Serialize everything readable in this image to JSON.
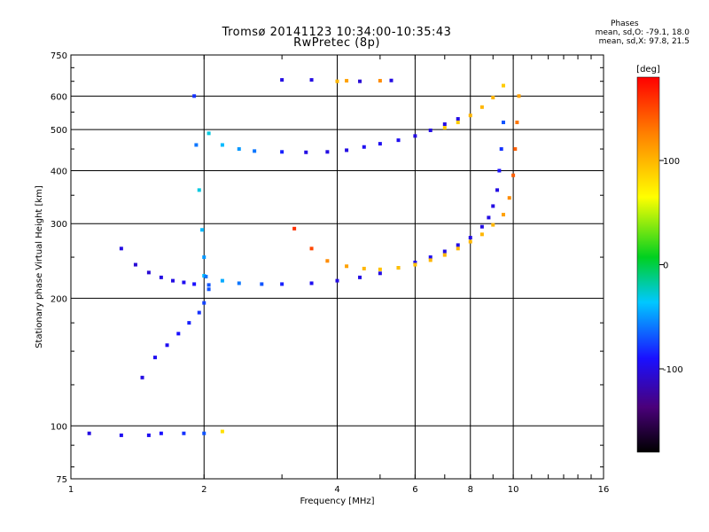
{
  "header": {
    "title": "Tromsø 20141123 10:34:00-10:35:43",
    "subtitle": "RwPretec (8p)"
  },
  "stats": {
    "heading": "Phases",
    "line_o": "mean, sd,O: -79.1, 18.0",
    "line_x": "mean, sd,X:  97.8, 21.5"
  },
  "colorbar": {
    "label": "[deg]",
    "ticks": [
      {
        "value": 100,
        "label": "100"
      },
      {
        "value": 0,
        "label": "0"
      },
      {
        "value": -100,
        "label": "-100"
      }
    ],
    "range": [
      -180,
      180
    ]
  },
  "chart_data": {
    "type": "scatter",
    "title": "Tromsø 20141123 10:34:00-10:35:43",
    "subtitle": "RwPretec (8p)",
    "xlabel": "Frequency [MHz]",
    "ylabel": "Stationary phase Virtual Height [km]",
    "x_scale": "log",
    "y_scale": "log",
    "xlim": [
      1,
      16
    ],
    "ylim": [
      75,
      750
    ],
    "x_ticks": [
      1,
      2,
      4,
      6,
      8,
      10,
      16
    ],
    "x_tick_labels": [
      "1",
      "2",
      "4",
      "6",
      "8",
      "10",
      "16"
    ],
    "y_ticks": [
      75,
      100,
      200,
      300,
      400,
      500,
      600,
      750
    ],
    "y_tick_labels": [
      "75",
      "100",
      "200",
      "300",
      "400",
      "500",
      "600",
      "750"
    ],
    "grid": true,
    "color_scale": "phase [deg], rainbow, -180 to 180",
    "series": [
      {
        "x": [
          2.05,
          2.2,
          2.4,
          2.6,
          3.0,
          3.4,
          3.8,
          4.2,
          4.6,
          5.0,
          5.5,
          6.0,
          6.5,
          7.0,
          7.5
        ],
        "y": [
          490,
          460,
          450,
          445,
          443,
          442,
          443,
          447,
          455,
          463,
          472,
          483,
          498,
          515,
          530
        ],
        "phase": [
          -30,
          -40,
          -50,
          -60,
          -85,
          -100,
          -100,
          -100,
          -95,
          -95,
          -95,
          -100,
          -100,
          -100,
          -100
        ]
      },
      {
        "x": [
          7.0,
          7.5,
          8.0,
          8.5,
          9.0,
          9.5
        ],
        "y": [
          505,
          520,
          540,
          565,
          595,
          635
        ],
        "phase": [
          90,
          90,
          100,
          100,
          100,
          90
        ]
      },
      {
        "x": [
          2.0,
          2.2,
          2.4,
          2.7,
          3.0,
          3.5,
          4.0,
          4.5,
          5.0,
          5.5,
          6.0,
          6.5,
          7.0,
          7.5,
          8.0,
          8.5,
          8.8,
          9.0,
          9.2,
          9.3,
          9.4,
          9.5
        ],
        "y": [
          226,
          220,
          217,
          216,
          216,
          217,
          220,
          224,
          229,
          236,
          243,
          250,
          258,
          267,
          278,
          295,
          310,
          330,
          360,
          400,
          450,
          520
        ],
        "phase": [
          -40,
          -45,
          -60,
          -70,
          -85,
          -95,
          -100,
          -100,
          -100,
          -100,
          -95,
          -95,
          -100,
          -100,
          -100,
          -100,
          -100,
          -100,
          -100,
          -90,
          -80,
          -70
        ]
      },
      {
        "x": [
          3.2,
          3.5,
          3.8,
          4.2,
          4.6,
          5.0,
          5.5,
          6.0,
          6.5,
          7.0,
          7.5,
          8.0,
          8.5,
          9.0,
          9.5,
          9.8,
          10.0,
          10.1,
          10.2,
          10.3
        ],
        "y": [
          292,
          262,
          245,
          238,
          235,
          234,
          236,
          240,
          246,
          253,
          262,
          272,
          283,
          298,
          315,
          345,
          390,
          450,
          520,
          600
        ],
        "phase": [
          160,
          150,
          120,
          110,
          100,
          95,
          95,
          95,
          100,
          100,
          100,
          100,
          100,
          100,
          110,
          120,
          140,
          140,
          130,
          110
        ]
      },
      {
        "x": [
          1.3,
          1.4,
          1.5,
          1.6,
          1.7,
          1.8,
          1.9
        ],
        "y": [
          262,
          240,
          230,
          224,
          220,
          218,
          216
        ],
        "phase": [
          -100,
          -105,
          -105,
          -100,
          -100,
          -95,
          -90
        ]
      },
      {
        "x": [
          1.9,
          1.92,
          1.95,
          1.98,
          2.0,
          2.02,
          2.05
        ],
        "y": [
          600,
          460,
          360,
          290,
          250,
          225,
          210
        ],
        "phase": [
          -80,
          -60,
          -30,
          -40,
          -50,
          -60,
          -70
        ]
      },
      {
        "x": [
          1.45,
          1.55,
          1.65,
          1.75,
          1.85,
          1.95,
          2.0,
          2.05
        ],
        "y": [
          130,
          145,
          155,
          165,
          175,
          185,
          195,
          215
        ],
        "phase": [
          -100,
          -95,
          -95,
          -90,
          -85,
          -80,
          -75,
          -70
        ]
      },
      {
        "x": [
          1.1,
          1.3,
          1.5,
          1.6,
          1.8,
          2.0,
          2.2
        ],
        "y": [
          96,
          95,
          95,
          96,
          96,
          96,
          97
        ],
        "phase": [
          -100,
          -95,
          -95,
          -90,
          -80,
          -70,
          80
        ]
      },
      {
        "x": [
          3.0,
          3.5,
          4.0,
          4.2,
          4.5,
          5.0,
          5.3
        ],
        "y": [
          655,
          655,
          650,
          652,
          650,
          652,
          653
        ],
        "phase": [
          -100,
          -100,
          100,
          110,
          -105,
          120,
          -100
        ]
      }
    ]
  }
}
